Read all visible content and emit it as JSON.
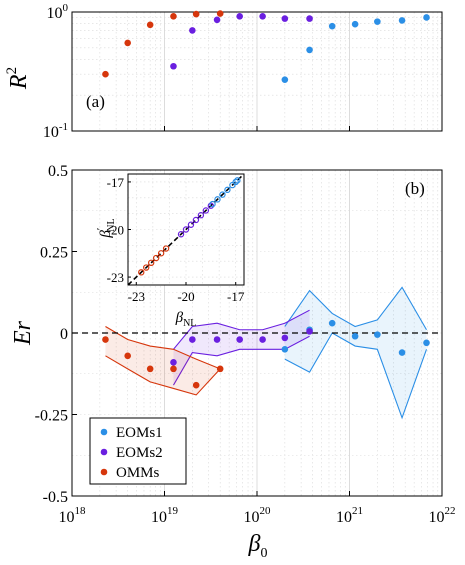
{
  "colors": {
    "EOMs1": "#2b8fe6",
    "EOMs2": "#6a1fe0",
    "OMMs": "#d6360c",
    "grid": "#d9d9d9",
    "zero_line": "#000000"
  },
  "chart_data": [
    {
      "type": "scatter",
      "panel_label": "(a)",
      "ylabel": "R",
      "ylabel_sup": "2",
      "xscale": "log",
      "yscale": "log",
      "xlim": [
        1e+18,
        1e+22
      ],
      "ylim": [
        0.1,
        1
      ],
      "x_ticks": [
        {
          "v": 18,
          "base": "10",
          "exp": "18"
        },
        {
          "v": 19,
          "base": "10",
          "exp": "19"
        },
        {
          "v": 20,
          "base": "10",
          "exp": "20"
        },
        {
          "v": 21,
          "base": "10",
          "exp": "21"
        },
        {
          "v": 22,
          "base": "10",
          "exp": "22"
        }
      ],
      "y_ticks": [
        {
          "v": -1,
          "base": "10",
          "exp": "-1"
        },
        {
          "v": 0,
          "base": "10",
          "exp": "0"
        }
      ],
      "grid": true,
      "series": [
        {
          "name": "OMMs",
          "x": [
            2.3e+18,
            4e+18,
            7e+18,
            1.25e+19,
            2.2e+19,
            4e+19
          ],
          "y": [
            0.3,
            0.55,
            0.78,
            0.92,
            0.96,
            0.97
          ]
        },
        {
          "name": "EOMs2",
          "x": [
            1.25e+19,
            2e+19,
            3.7e+19,
            6.5e+19,
            1.15e+20,
            2e+20,
            3.7e+20
          ],
          "y": [
            0.35,
            0.7,
            0.86,
            0.92,
            0.92,
            0.88,
            0.88
          ]
        },
        {
          "name": "EOMs1",
          "x": [
            2e+20,
            3.7e+20,
            6.5e+20,
            1.15e+21,
            2e+21,
            3.7e+21,
            6.8e+21
          ],
          "y": [
            0.27,
            0.48,
            0.76,
            0.79,
            0.83,
            0.85,
            0.9
          ]
        }
      ]
    },
    {
      "type": "scatter",
      "panel_label": "(b)",
      "ylabel": "Er",
      "xlabel": "β",
      "xlabel_sub": "0",
      "xscale": "log",
      "xlim": [
        1e+18,
        1e+22
      ],
      "ylim": [
        -0.5,
        0.5
      ],
      "y_ticks": [
        {
          "v": 0.5,
          "label": "0.5"
        },
        {
          "v": 0.25,
          "label": "0.25"
        },
        {
          "v": 0,
          "label": "0"
        },
        {
          "v": -0.25,
          "label": "-0.25"
        },
        {
          "v": -0.5,
          "label": "-0.5"
        }
      ],
      "x_ticks": [
        {
          "v": 18,
          "base": "10",
          "exp": "18"
        },
        {
          "v": 19,
          "base": "10",
          "exp": "19"
        },
        {
          "v": 20,
          "base": "10",
          "exp": "20"
        },
        {
          "v": 21,
          "base": "10",
          "exp": "21"
        },
        {
          "v": 22,
          "base": "10",
          "exp": "22"
        }
      ],
      "reference_line": 0,
      "grid": true,
      "legend": {
        "placement": "bottom-left",
        "entries": [
          "EOMs1",
          "EOMs2",
          "OMMs"
        ]
      },
      "series": [
        {
          "name": "EOMs1",
          "x": [
            2e+20,
            3.7e+20,
            6.5e+20,
            1.15e+21,
            2e+21,
            3.7e+21,
            6.8e+21
          ],
          "y": [
            -0.05,
            0.01,
            0.03,
            -0.01,
            -0.005,
            -0.06,
            -0.03
          ],
          "upper": [
            0.02,
            0.13,
            0.06,
            0.02,
            0.04,
            0.14,
            0.01
          ],
          "lower": [
            -0.08,
            -0.12,
            0.0,
            -0.04,
            -0.05,
            -0.26,
            -0.05
          ]
        },
        {
          "name": "EOMs2",
          "x": [
            1.25e+19,
            2e+19,
            3.7e+19,
            6.5e+19,
            1.15e+20,
            2e+20,
            3.7e+20
          ],
          "y": [
            -0.09,
            -0.02,
            -0.02,
            -0.02,
            -0.02,
            -0.015,
            0.005
          ],
          "upper": [
            -0.05,
            0.02,
            0.03,
            0.01,
            0.01,
            0.03,
            0.07
          ],
          "lower": [
            -0.16,
            -0.06,
            -0.07,
            -0.05,
            -0.05,
            -0.05,
            -0.01
          ]
        },
        {
          "name": "OMMs",
          "x": [
            2.3e+18,
            4e+18,
            7e+18,
            1.25e+19,
            2.2e+19,
            4e+19
          ],
          "y": [
            -0.02,
            -0.07,
            -0.11,
            -0.11,
            -0.16,
            -0.11
          ],
          "upper": [
            0.02,
            -0.02,
            -0.04,
            -0.05,
            -0.08,
            -0.11
          ],
          "lower": [
            -0.07,
            -0.11,
            -0.15,
            -0.17,
            -0.19,
            -0.11
          ]
        }
      ],
      "inset": {
        "xlabel": "β",
        "xlabel_sub": "NL",
        "ylabel": "β",
        "ylabel_sub": "NL",
        "ylabel_prime": "′",
        "xlim": [
          -23.5,
          -16.5
        ],
        "ylim": [
          -23.5,
          -16.5
        ],
        "ticks": [
          {
            "v": -23,
            "label": "-23"
          },
          {
            "v": -20,
            "label": "-20"
          },
          {
            "v": -17,
            "label": "-17"
          }
        ],
        "diagonal": true,
        "series": [
          {
            "name": "OMMs",
            "x": [
              -22.7,
              -22.4,
              -22.1,
              -21.8,
              -21.5,
              -21.2
            ],
            "y": [
              -22.7,
              -22.4,
              -22.1,
              -21.8,
              -21.5,
              -21.2
            ]
          },
          {
            "name": "EOMs2",
            "x": [
              -20.3,
              -20.0,
              -19.7,
              -19.4,
              -19.1,
              -18.8,
              -18.5
            ],
            "y": [
              -20.3,
              -20.0,
              -19.7,
              -19.4,
              -19.1,
              -18.8,
              -18.5
            ]
          },
          {
            "name": "EOMs1",
            "x": [
              -18.4,
              -18.1,
              -17.8,
              -17.5,
              -17.2,
              -17.0,
              -16.9
            ],
            "y": [
              -18.4,
              -18.1,
              -17.8,
              -17.5,
              -17.2,
              -17.0,
              -16.9
            ]
          }
        ]
      }
    }
  ]
}
